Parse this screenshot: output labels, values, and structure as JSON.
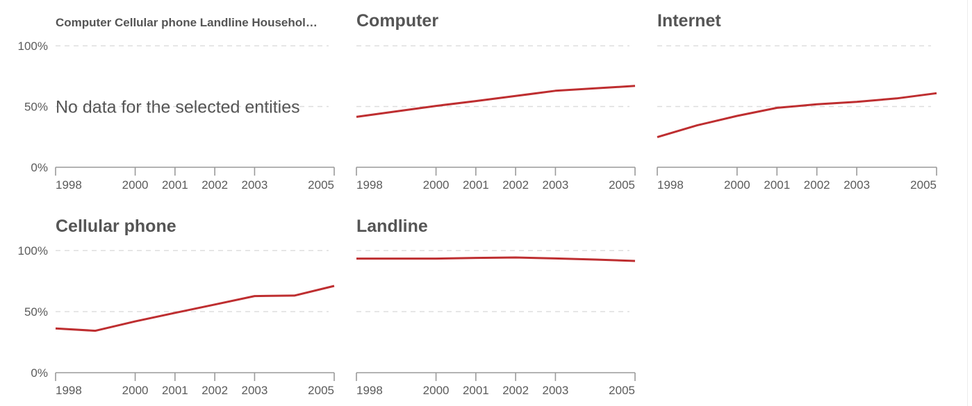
{
  "chart_data": [
    {
      "type": "line",
      "title": "Computer Cellular phone Landline Househol…",
      "message": "No data for the selected entities",
      "x": [],
      "series": [],
      "xticks": [
        "1998",
        "2000",
        "2001",
        "2002",
        "2003",
        "2005"
      ],
      "yticks": [
        "0%",
        "50%",
        "100%"
      ],
      "xlim": [
        1998,
        2005
      ],
      "ylim": [
        0,
        100
      ],
      "grid": true
    },
    {
      "type": "line",
      "title": "Computer",
      "x": [
        1998,
        1999,
        2000,
        2001,
        2002,
        2003,
        2004,
        2005
      ],
      "series": [
        {
          "name": "Computer",
          "values": [
            41.5,
            46,
            50.5,
            54.5,
            58.7,
            63,
            65,
            67
          ]
        }
      ],
      "xticks": [
        "1998",
        "2000",
        "2001",
        "2002",
        "2003",
        "2005"
      ],
      "yticks": [
        "0%",
        "50%",
        "100%"
      ],
      "xlim": [
        1998,
        2005
      ],
      "ylim": [
        0,
        100
      ],
      "grid": true
    },
    {
      "type": "line",
      "title": "Internet",
      "x": [
        1998,
        1999,
        2000,
        2001,
        2002,
        2003,
        2004,
        2005
      ],
      "series": [
        {
          "name": "Internet",
          "values": [
            24.8,
            34.5,
            42.3,
            48.9,
            51.8,
            53.9,
            56.7,
            61
          ]
        }
      ],
      "xticks": [
        "1998",
        "2000",
        "2001",
        "2002",
        "2003",
        "2005"
      ],
      "yticks": [
        "0%",
        "50%",
        "100%"
      ],
      "xlim": [
        1998,
        2005
      ],
      "ylim": [
        0,
        100
      ],
      "grid": true
    },
    {
      "type": "line",
      "title": "Cellular phone",
      "x": [
        1998,
        1999,
        2000,
        2001,
        2002,
        2003,
        2004,
        2005
      ],
      "series": [
        {
          "name": "Cellular phone",
          "values": [
            36.2,
            34.3,
            42,
            49,
            55.8,
            62.7,
            63.1,
            71
          ]
        }
      ],
      "xticks": [
        "1998",
        "2000",
        "2001",
        "2002",
        "2003",
        "2005"
      ],
      "yticks": [
        "0%",
        "50%",
        "100%"
      ],
      "xlim": [
        1998,
        2005
      ],
      "ylim": [
        0,
        100
      ],
      "grid": true
    },
    {
      "type": "line",
      "title": "Landline",
      "x": [
        1998,
        1999,
        2000,
        2001,
        2002,
        2003,
        2004,
        2005
      ],
      "series": [
        {
          "name": "Landline",
          "values": [
            93.4,
            93.4,
            93.4,
            94,
            94.3,
            93.5,
            92.6,
            91.5
          ]
        }
      ],
      "xticks": [
        "1998",
        "2000",
        "2001",
        "2002",
        "2003",
        "2005"
      ],
      "yticks": [
        "0%",
        "50%",
        "100%"
      ],
      "xlim": [
        1998,
        2005
      ],
      "ylim": [
        0,
        100
      ],
      "grid": true
    }
  ],
  "colors": {
    "line": "#be2e30",
    "text": "#555555",
    "grid": "#dddddd",
    "axis": "#9a9a9a"
  }
}
